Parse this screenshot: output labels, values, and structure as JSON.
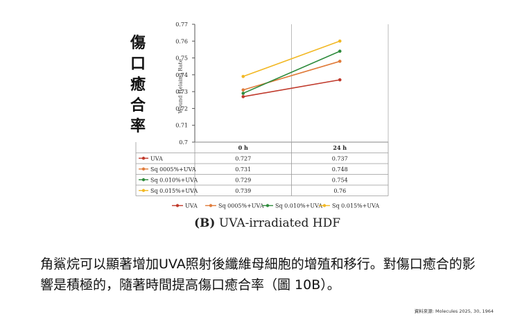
{
  "side_title": "傷口癒合率",
  "caption": {
    "label": "(B)",
    "text": "UVA-irradiated HDF"
  },
  "body_text": "角鯊烷可以顯著增加UVA照射後纖維母細胞的增殖和移行。對傷口癒合的影響是積極的，隨著時間提高傷口癒合率（圖 10B）。",
  "source": "資料來源: Molecules 2025, 30, 1964",
  "chart_data": {
    "type": "line",
    "title": "",
    "xlabel": "",
    "ylabel": "Wound Helaing Rate",
    "categories": [
      "0 h",
      "24 h"
    ],
    "ylim": [
      0.7,
      0.77
    ],
    "yticks": [
      "0.77",
      "0.76",
      "0.75",
      "0.74",
      "0.73",
      "0.72",
      "0.71",
      "0.7"
    ],
    "grid": "vertical",
    "legend": "bottom",
    "series": [
      {
        "name": "UVA",
        "values": [
          0.727,
          0.737
        ],
        "labels": [
          "0.727",
          "0.737"
        ],
        "color": "#c0392b"
      },
      {
        "name": "Sq 0005%+UVA",
        "values": [
          0.731,
          0.748
        ],
        "labels": [
          "0.731",
          "0.748"
        ],
        "color": "#e07b39"
      },
      {
        "name": "Sq 0.010%+UVA",
        "values": [
          0.729,
          0.754
        ],
        "labels": [
          "0.729",
          "0.754"
        ],
        "color": "#2e8b3c"
      },
      {
        "name": "Sq 0.015%+UVA",
        "values": [
          0.739,
          0.76
        ],
        "labels": [
          "0.739",
          "0.76"
        ],
        "color": "#f2b824"
      }
    ]
  }
}
